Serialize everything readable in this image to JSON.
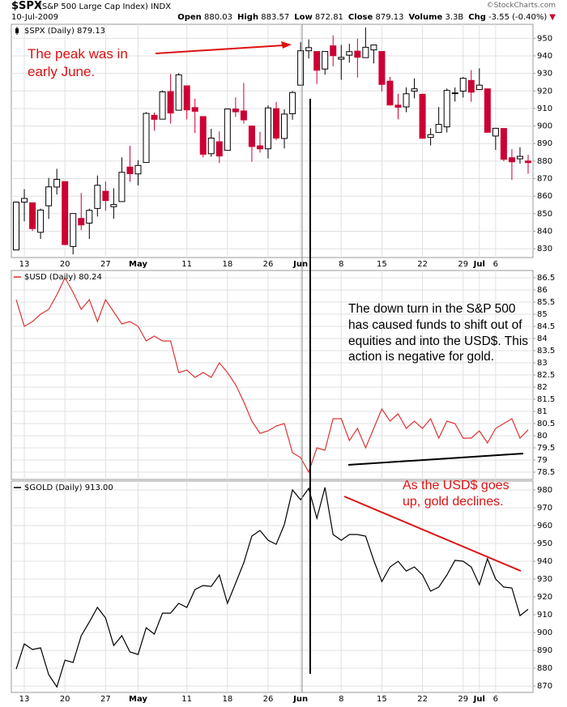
{
  "header": {
    "symbol": "$SPX",
    "name": "(S&P 500 Large Cap Index) INDX",
    "date": "10-Jul-2009",
    "quote": [
      {
        "label": "Open",
        "value": "880.03"
      },
      {
        "label": "High",
        "value": "883.57"
      },
      {
        "label": "Low",
        "value": "872.81"
      },
      {
        "label": "Close",
        "value": "879.13"
      },
      {
        "label": "Volume",
        "value": "3.3B"
      },
      {
        "label": "Chg",
        "value": "-3.55 (-0.40%)"
      }
    ],
    "credit": "©StockCharts.com"
  },
  "chart_data": [
    {
      "type": "candlestick",
      "title": "$SPX (Daily) 879.13",
      "up_color": "#000000",
      "down_color": "#cc0033",
      "grid": true,
      "annotations": [
        "The peak was in early June."
      ],
      "annotation_color": "#dd1111",
      "categories": [
        null,
        "13",
        null,
        null,
        null,
        null,
        "20",
        null,
        null,
        null,
        null,
        "27",
        null,
        null,
        null,
        "May",
        null,
        null,
        null,
        null,
        null,
        "11",
        null,
        null,
        null,
        null,
        "18",
        null,
        null,
        null,
        null,
        "26",
        null,
        null,
        null,
        "Jun",
        null,
        null,
        null,
        null,
        "8",
        null,
        null,
        null,
        null,
        "15",
        null,
        null,
        null,
        null,
        "22",
        null,
        null,
        null,
        null,
        "29",
        null,
        "Jul",
        null,
        "6",
        null,
        null,
        null,
        null
      ],
      "open": [
        829.3,
        856.6,
        856.2,
        839.4,
        854.5,
        865.2,
        868.3,
        831.3,
        847.3,
        844.6,
        853.0,
        862.8,
        854.0,
        856.9,
        876.6,
        872.7,
        879.2,
        906.1,
        903.9,
        919.6,
        909.0,
        922.9,
        910.5,
        905.4,
        884.2,
        891.0,
        886.1,
        909.7,
        908.6,
        900.0,
        888.7,
        887.0,
        909.9,
        892.9,
        907.0,
        923.3,
        942.9,
        942.5,
        932.5,
        945.7,
        938.1,
        940.4,
        942.7,
        939.0,
        943.4,
        942.5,
        925.6,
        911.9,
        910.9,
        919.9,
        918.1,
        893.5,
        896.3,
        899.5,
        918.8,
        919.9,
        926.0,
        920.8,
        921.2,
        894.3,
        898.6,
        881.9,
        881.3,
        880.03
      ],
      "high": [
        856.9,
        864.0,
        856.2,
        852.9,
        870.4,
        875.6,
        868.3,
        850.1,
        861.8,
        852.9,
        871.8,
        868.3,
        864.5,
        882.1,
        888.7,
        880.5,
        907.9,
        907.7,
        920.3,
        929.6,
        930.2,
        922.9,
        915.6,
        905.4,
        898.4,
        896.9,
        910.0,
        916.4,
        924.6,
        900.0,
        896.7,
        911.8,
        913.8,
        909.5,
        920.0,
        947.8,
        949.4,
        942.5,
        942.5,
        951.7,
        946.3,
        946.9,
        949.8,
        956.2,
        946.3,
        942.5,
        928.0,
        918.4,
        922.0,
        927.1,
        918.1,
        898.7,
        910.8,
        921.4,
        922.0,
        927.9,
        931.9,
        932.9,
        921.2,
        898.7,
        898.6,
        886.8,
        887.9,
        883.57
      ],
      "low": [
        829.3,
        845.6,
        840.2,
        835.6,
        847.0,
        860.9,
        832.0,
        826.8,
        840.6,
        835.6,
        848.4,
        851.7,
        847.1,
        856.9,
        868.2,
        866.1,
        879.2,
        897.3,
        903.9,
        901.4,
        909.0,
        903.8,
        896.0,
        882.1,
        882.5,
        878.9,
        886.1,
        905.2,
        901.4,
        879.6,
        884.8,
        881.5,
        891.9,
        887.2,
        903.6,
        923.3,
        938.5,
        923.9,
        929.3,
        934.1,
        926.4,
        936.1,
        927.6,
        939.0,
        935.7,
        919.7,
        911.6,
        903.8,
        907.9,
        915.8,
        893.0,
        888.9,
        896.3,
        896.3,
        913.9,
        916.2,
        913.8,
        920.8,
        896.4,
        886.4,
        879.9,
        869.3,
        878.5,
        872.81
      ],
      "close": [
        856.6,
        858.7,
        841.5,
        852.1,
        865.3,
        869.6,
        832.4,
        850.1,
        843.6,
        851.9,
        866.2,
        857.5,
        855.2,
        873.6,
        872.8,
        877.5,
        907.2,
        903.8,
        919.5,
        907.4,
        929.2,
        909.2,
        908.4,
        883.9,
        893.1,
        882.9,
        909.7,
        908.1,
        903.5,
        888.3,
        887.0,
        910.3,
        893.1,
        906.8,
        919.1,
        942.9,
        944.7,
        931.8,
        942.5,
        940.1,
        939.1,
        942.4,
        939.2,
        944.9,
        946.2,
        923.7,
        912.0,
        910.7,
        918.4,
        921.2,
        893.0,
        895.1,
        900.9,
        920.3,
        918.9,
        927.2,
        919.3,
        923.3,
        896.4,
        898.7,
        881.0,
        879.6,
        882.7,
        879.13
      ],
      "ylim": [
        825,
        958
      ],
      "yticks": [
        830,
        840,
        850,
        860,
        870,
        880,
        890,
        900,
        910,
        920,
        930,
        940,
        950
      ]
    },
    {
      "type": "line",
      "title": "$USD (Daily) 80.24",
      "color": "#dd3333",
      "grid": true,
      "annotations": [
        "The down turn in the S&P 500 has caused funds to shift out of equities and into the USD$.  This action is negative for gold."
      ],
      "annotation_color": "#000000",
      "values": [
        85.6,
        84.5,
        84.7,
        85.0,
        85.2,
        85.8,
        86.5,
        85.9,
        85.2,
        85.6,
        84.7,
        85.6,
        85.1,
        84.6,
        84.7,
        84.5,
        83.9,
        84.1,
        83.9,
        83.9,
        82.6,
        82.7,
        82.4,
        82.6,
        82.4,
        83.0,
        82.6,
        82.1,
        81.4,
        80.6,
        80.1,
        80.2,
        80.4,
        80.5,
        79.3,
        79.1,
        78.5,
        79.5,
        79.4,
        80.7,
        80.7,
        79.8,
        80.3,
        79.5,
        80.3,
        81.1,
        80.6,
        80.9,
        80.3,
        80.6,
        80.3,
        80.7,
        79.9,
        80.6,
        80.5,
        79.9,
        79.9,
        80.2,
        79.7,
        80.3,
        80.5,
        80.7,
        79.9,
        80.24
      ],
      "ylim": [
        78.2,
        86.8
      ],
      "yticks": [
        78.5,
        79.0,
        79.5,
        80.0,
        80.5,
        81.0,
        81.5,
        82.0,
        82.5,
        83.0,
        83.5,
        84.0,
        84.5,
        85.0,
        85.5,
        86.0,
        86.5
      ]
    },
    {
      "type": "line",
      "title": "$GOLD (Daily) 913.00",
      "color": "#000000",
      "grid": true,
      "annotations": [
        "As the USD$ goes up, gold declines."
      ],
      "annotation_color": "#dd1111",
      "categories": [
        null,
        "13",
        null,
        null,
        null,
        null,
        "20",
        null,
        null,
        null,
        null,
        "27",
        null,
        null,
        null,
        "May",
        null,
        null,
        null,
        null,
        null,
        "11",
        null,
        null,
        null,
        null,
        "18",
        null,
        null,
        null,
        null,
        "26",
        null,
        null,
        null,
        "Jun",
        null,
        null,
        null,
        null,
        "8",
        null,
        null,
        null,
        null,
        "15",
        null,
        null,
        null,
        null,
        "22",
        null,
        null,
        null,
        null,
        "29",
        null,
        "Jul",
        null,
        "6",
        null,
        null,
        null,
        null
      ],
      "values": [
        879.5,
        893.6,
        890.5,
        891.4,
        876.4,
        869.5,
        884.5,
        883.2,
        898.2,
        905.9,
        914.1,
        908.2,
        892.7,
        898.2,
        889.1,
        887.7,
        902.7,
        899.1,
        910.9,
        910.9,
        916.4,
        914.1,
        924.1,
        926.4,
        925.9,
        932.3,
        916.4,
        927.7,
        939.1,
        954.1,
        957.3,
        951.8,
        949.5,
        960.5,
        980.0,
        974.5,
        980.9,
        964.1,
        981.4,
        955.0,
        951.8,
        955.0,
        955.0,
        954.1,
        940.5,
        928.6,
        936.8,
        940.0,
        934.5,
        936.8,
        932.3,
        923.2,
        925.5,
        932.3,
        940.5,
        940.0,
        936.8,
        926.8,
        941.4,
        930.0,
        925.5,
        925.0,
        909.5,
        913.0
      ],
      "ylim": [
        866.4,
        985
      ],
      "yticks": [
        870,
        880,
        890,
        900,
        910,
        920,
        930,
        940,
        950,
        960,
        970,
        980
      ]
    }
  ]
}
